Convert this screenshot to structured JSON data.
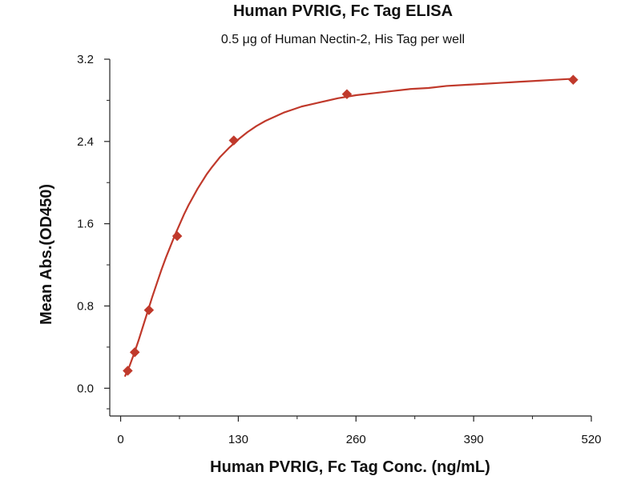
{
  "chart_data": {
    "type": "scatter",
    "title": "Human PVRIG, Fc Tag ELISA",
    "subtitle": "0.5 μg of Human Nectin-2, His Tag per well",
    "xlabel": "Human PVRIG, Fc Tag Conc. (ng/mL)",
    "ylabel": "Mean Abs.(OD450)",
    "xlim": [
      -12,
      520
    ],
    "ylim": [
      -0.27,
      3.2
    ],
    "xticks": [
      0,
      130,
      260,
      390,
      520
    ],
    "yticks": [
      0.0,
      0.8,
      1.6,
      2.4,
      3.2
    ],
    "xtick_labels": [
      "0",
      "130",
      "260",
      "390",
      "520"
    ],
    "ytick_labels": [
      "0.0",
      "0.8",
      "1.6",
      "2.4",
      "3.2"
    ],
    "grid": false,
    "series": [
      {
        "points": [
          {
            "x": 7.8,
            "y": 0.17
          },
          {
            "x": 15.6,
            "y": 0.35
          },
          {
            "x": 31.25,
            "y": 0.76
          },
          {
            "x": 62.5,
            "y": 1.48
          },
          {
            "x": 125,
            "y": 2.41
          },
          {
            "x": 250,
            "y": 2.86
          },
          {
            "x": 500,
            "y": 3.0
          }
        ],
        "marker": "diamond",
        "color": "#c0392b"
      }
    ],
    "fit_curve": {
      "color": "#c0392b",
      "x": [
        5,
        10,
        15,
        20,
        25,
        30,
        35,
        40,
        45,
        50,
        55,
        60,
        65,
        70,
        75,
        80,
        85,
        90,
        95,
        100,
        110,
        120,
        130,
        140,
        150,
        160,
        170,
        180,
        190,
        200,
        220,
        240,
        260,
        280,
        300,
        320,
        340,
        360,
        380,
        400,
        420,
        440,
        460,
        480,
        500
      ],
      "y": [
        0.12,
        0.22,
        0.34,
        0.47,
        0.61,
        0.75,
        0.89,
        1.02,
        1.15,
        1.27,
        1.38,
        1.49,
        1.59,
        1.69,
        1.78,
        1.86,
        1.94,
        2.01,
        2.08,
        2.14,
        2.25,
        2.34,
        2.42,
        2.49,
        2.55,
        2.6,
        2.64,
        2.68,
        2.71,
        2.74,
        2.78,
        2.82,
        2.85,
        2.87,
        2.89,
        2.91,
        2.92,
        2.94,
        2.95,
        2.96,
        2.97,
        2.98,
        2.99,
        3.0,
        3.01
      ]
    }
  }
}
